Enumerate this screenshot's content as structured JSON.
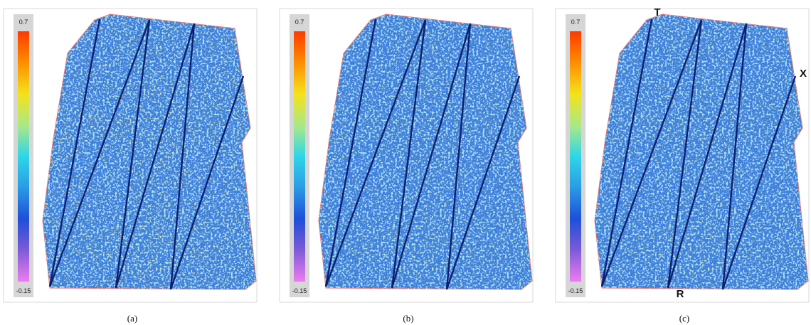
{
  "panels": [
    {
      "colorbar": {
        "max": 0.7,
        "min": -0.15
      },
      "caption": "(a)"
    },
    {
      "colorbar": {
        "max": 0.7,
        "min": -0.15
      },
      "caption": "(b)"
    },
    {
      "colorbar": {
        "max": 0.7,
        "min": -0.15
      },
      "caption": "(c)",
      "markers": [
        "T",
        "R",
        "X"
      ]
    }
  ]
}
